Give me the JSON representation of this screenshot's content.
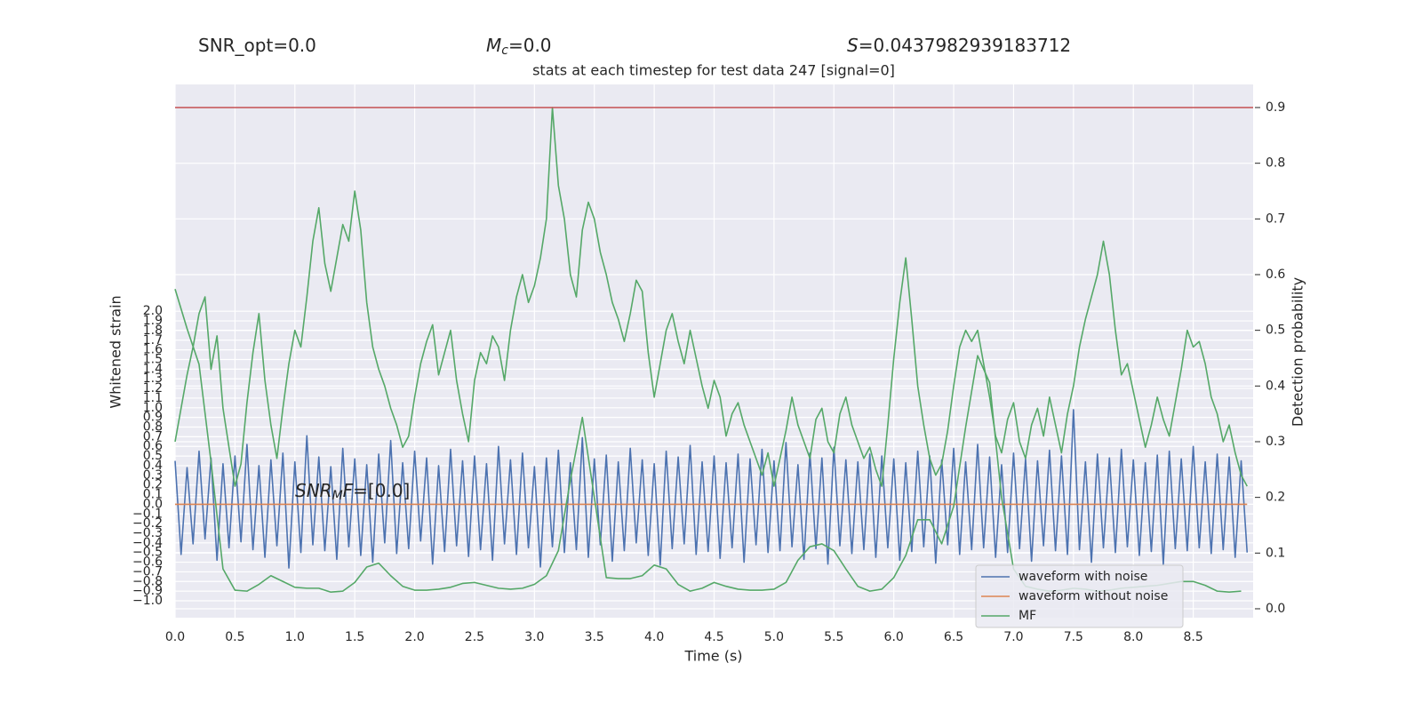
{
  "chart_data": {
    "type": "line",
    "title": "stats at each timestep for test data 247 [signal=0]",
    "xlabel": "Time (s)",
    "ylabel": "Whitened strain",
    "y2label": "Detection probability",
    "annotations": [
      {
        "parts": [
          {
            "text": "SNR_opt=0.0"
          }
        ]
      },
      {
        "parts": [
          {
            "text": "M",
            "style": "italic"
          },
          {
            "text": "c",
            "style": "italic-sub"
          },
          {
            "text": "=0.0"
          }
        ]
      },
      {
        "parts": [
          {
            "text": "S",
            "style": "italic"
          },
          {
            "text": "=0.0437982939183712"
          }
        ]
      },
      {
        "parts": [
          {
            "text": "SNR",
            "style": "italic"
          },
          {
            "text": "M",
            "style": "italic-sub"
          },
          {
            "text": "F",
            "style": "italic"
          },
          {
            "text": "=[0.0]"
          }
        ]
      }
    ],
    "grid": true,
    "legend": "lower right",
    "xlim": [
      0,
      9
    ],
    "ylim": [
      -1.175,
      4.35
    ],
    "y2lim": [
      -0.016,
      0.9415
    ],
    "xticks": [
      {
        "value": 0,
        "label": "0.0"
      },
      0.5,
      {
        "value": 1,
        "label": "1.0"
      },
      1.5,
      {
        "value": 2,
        "label": "2.0"
      },
      2.5,
      {
        "value": 3,
        "label": "3.0"
      },
      3.5,
      {
        "value": 4,
        "label": "4.0"
      },
      4.5,
      {
        "value": 5,
        "label": "5.0"
      },
      5.5,
      {
        "value": 6,
        "label": "6.0"
      },
      6.5,
      {
        "value": 7,
        "label": "7.0"
      },
      7.5,
      {
        "value": 8,
        "label": "8.0"
      },
      8.5
    ],
    "yticks": [
      {
        "value": -1,
        "label": "−1.0"
      },
      {
        "value": -0.9,
        "label": "−0.9"
      },
      {
        "value": -0.8,
        "label": "−0.8"
      },
      {
        "value": -0.7,
        "label": "−0.7"
      },
      {
        "value": -0.6,
        "label": "−0.6"
      },
      {
        "value": -0.5,
        "label": "−0.5"
      },
      {
        "value": -0.4,
        "label": "−0.4"
      },
      {
        "value": -0.3,
        "label": "−0.3"
      },
      {
        "value": -0.2,
        "label": "−0.2"
      },
      {
        "value": -0.1,
        "label": "−0.1"
      },
      {
        "value": 0,
        "label": "0.0"
      },
      0.1,
      0.2,
      0.3,
      0.4,
      0.5,
      0.6,
      0.7,
      0.8,
      0.9,
      {
        "value": 1,
        "label": "1.0"
      },
      1.1,
      1.2,
      1.3,
      1.4,
      1.5,
      1.6,
      1.7,
      1.8,
      1.9,
      {
        "value": 2,
        "label": "2.0"
      }
    ],
    "y2ticks": [
      {
        "value": 0,
        "label": "0.0"
      },
      0.1,
      0.2,
      0.3,
      0.4,
      0.5,
      0.6,
      0.7,
      0.8,
      0.9
    ],
    "x": [
      0,
      0.05,
      0.1,
      0.15,
      0.2,
      0.25,
      0.3,
      0.35,
      0.4,
      0.45,
      0.5,
      0.55,
      0.6,
      0.65,
      0.7,
      0.75,
      0.8,
      0.85,
      0.9,
      0.95,
      1,
      1.05,
      1.1,
      1.15,
      1.2,
      1.25,
      1.3,
      1.35,
      1.4,
      1.45,
      1.5,
      1.55,
      1.6,
      1.65,
      1.7,
      1.75,
      1.8,
      1.85,
      1.9,
      1.95,
      2,
      2.05,
      2.1,
      2.15,
      2.2,
      2.25,
      2.3,
      2.35,
      2.4,
      2.45,
      2.5,
      2.55,
      2.6,
      2.65,
      2.7,
      2.75,
      2.8,
      2.85,
      2.9,
      2.95,
      3,
      3.05,
      3.1,
      3.15,
      3.2,
      3.25,
      3.3,
      3.35,
      3.4,
      3.45,
      3.5,
      3.55,
      3.6,
      3.65,
      3.7,
      3.75,
      3.8,
      3.85,
      3.9,
      3.95,
      4,
      4.05,
      4.1,
      4.15,
      4.2,
      4.25,
      4.3,
      4.35,
      4.4,
      4.45,
      4.5,
      4.55,
      4.6,
      4.65,
      4.7,
      4.75,
      4.8,
      4.85,
      4.9,
      4.95,
      5,
      5.05,
      5.1,
      5.15,
      5.2,
      5.25,
      5.3,
      5.35,
      5.4,
      5.45,
      5.5,
      5.55,
      5.6,
      5.65,
      5.7,
      5.75,
      5.8,
      5.85,
      5.9,
      5.95,
      6,
      6.05,
      6.1,
      6.15,
      6.2,
      6.25,
      6.3,
      6.35,
      6.4,
      6.45,
      6.5,
      6.55,
      6.6,
      6.65,
      6.7,
      6.75,
      6.8,
      6.85,
      6.9,
      6.95,
      7,
      7.05,
      7.1,
      7.15,
      7.2,
      7.25,
      7.3,
      7.35,
      7.4,
      7.45,
      7.5,
      7.55,
      7.6,
      7.65,
      7.7,
      7.75,
      7.8,
      7.85,
      7.9,
      7.95,
      8,
      8.05,
      8.1,
      8.15,
      8.2,
      8.25,
      8.3,
      8.35,
      8.4,
      8.45,
      8.5,
      8.55,
      8.6,
      8.65,
      8.7,
      8.75,
      8.8,
      8.85,
      8.9,
      8.95
    ],
    "series": [
      {
        "name": "waveform with noise",
        "color": "#4c72b0",
        "values": [
          0.45,
          -0.52,
          0.38,
          -0.41,
          0.55,
          -0.36,
          0.48,
          -0.58,
          0.42,
          -0.45,
          0.5,
          -0.39,
          0.62,
          -0.47,
          0.4,
          -0.55,
          0.46,
          -0.43,
          0.53,
          -0.66,
          0.44,
          -0.5,
          0.71,
          -0.42,
          0.49,
          -0.48,
          0.39,
          -0.57,
          0.58,
          -0.44,
          0.47,
          -0.53,
          0.41,
          -0.6,
          0.52,
          -0.4,
          0.66,
          -0.51,
          0.43,
          -0.46,
          0.55,
          -0.38,
          0.48,
          -0.62,
          0.4,
          -0.49,
          0.57,
          -0.43,
          0.45,
          -0.54,
          0.5,
          -0.47,
          0.42,
          -0.58,
          0.6,
          -0.41,
          0.46,
          -0.52,
          0.53,
          -0.45,
          0.39,
          -0.65,
          0.48,
          -0.44,
          0.56,
          -0.5,
          0.43,
          -0.47,
          0.69,
          -0.55,
          0.47,
          -0.42,
          0.51,
          -0.59,
          0.44,
          -0.48,
          0.58,
          -0.4,
          0.46,
          -0.53,
          0.42,
          -0.63,
          0.55,
          -0.46,
          0.49,
          -0.41,
          0.61,
          -0.52,
          0.44,
          -0.49,
          0.5,
          -0.56,
          0.43,
          -0.45,
          0.52,
          -0.6,
          0.47,
          -0.42,
          0.57,
          -0.5,
          0.45,
          -0.48,
          0.64,
          -0.44,
          0.41,
          -0.57,
          0.53,
          -0.46,
          0.48,
          -0.62,
          0.59,
          -0.43,
          0.46,
          -0.51,
          0.44,
          -0.47,
          0.52,
          -0.55,
          0.5,
          -0.45,
          0.47,
          -0.58,
          0.43,
          -0.49,
          0.55,
          -0.44,
          0.5,
          -0.61,
          0.46,
          -0.42,
          0.58,
          -0.52,
          0.44,
          -0.47,
          0.62,
          -0.45,
          0.49,
          -0.55,
          0.41,
          -0.5,
          0.53,
          -0.46,
          0.47,
          -0.59,
          0.45,
          -0.43,
          0.56,
          -0.48,
          0.5,
          -0.52,
          0.98,
          -0.47,
          0.44,
          -0.6,
          0.52,
          -0.45,
          0.48,
          -0.5,
          0.57,
          -0.44,
          0.46,
          -0.53,
          0.43,
          -0.49,
          0.51,
          -0.62,
          0.55,
          -0.46,
          0.47,
          -0.48,
          0.6,
          -0.45,
          0.44,
          -0.51,
          0.52,
          -0.47,
          0.49,
          -0.55,
          0.45,
          -0.5
        ]
      },
      {
        "name": "waveform without noise",
        "color": "#dd8452",
        "x": [
          0,
          8.95
        ],
        "values": [
          0,
          0
        ]
      },
      {
        "name": "MF",
        "color": "#55a868",
        "x": [
          0,
          0.1,
          0.2,
          0.3,
          0.4,
          0.5,
          0.6,
          0.7,
          0.8,
          0.9,
          1,
          1.1,
          1.2,
          1.3,
          1.4,
          1.5,
          1.6,
          1.7,
          1.8,
          1.9,
          2,
          2.1,
          2.2,
          2.3,
          2.4,
          2.5,
          2.6,
          2.7,
          2.8,
          2.9,
          3,
          3.1,
          3.2,
          3.3,
          3.4,
          3.5,
          3.6,
          3.7,
          3.8,
          3.9,
          4,
          4.1,
          4.2,
          4.3,
          4.4,
          4.5,
          4.6,
          4.7,
          4.8,
          4.9,
          5,
          5.1,
          5.2,
          5.3,
          5.4,
          5.5,
          5.6,
          5.7,
          5.8,
          5.9,
          6,
          6.1,
          6.2,
          6.3,
          6.4,
          6.5,
          6.6,
          6.7,
          6.8,
          6.9,
          7,
          7.1,
          7.2,
          7.3,
          7.4,
          7.5,
          7.6,
          7.7,
          7.8,
          7.9,
          8,
          8.1,
          8.2,
          8.3,
          8.4,
          8.5,
          8.6,
          8.7,
          8.8,
          8.9
        ],
        "values": [
          2.23,
          1.82,
          1.45,
          0.44,
          -0.67,
          -0.89,
          -0.9,
          -0.83,
          -0.74,
          -0.8,
          -0.86,
          -0.87,
          -0.87,
          -0.91,
          -0.9,
          -0.81,
          -0.65,
          -0.61,
          -0.74,
          -0.85,
          -0.89,
          -0.89,
          -0.88,
          -0.86,
          -0.82,
          -0.81,
          -0.84,
          -0.87,
          -0.88,
          -0.87,
          -0.83,
          -0.74,
          -0.48,
          0.25,
          0.9,
          0.07,
          -0.76,
          -0.77,
          -0.77,
          -0.74,
          -0.63,
          -0.67,
          -0.83,
          -0.9,
          -0.87,
          -0.81,
          -0.85,
          -0.88,
          -0.89,
          -0.89,
          -0.88,
          -0.81,
          -0.58,
          -0.44,
          -0.41,
          -0.48,
          -0.67,
          -0.85,
          -0.9,
          -0.88,
          -0.76,
          -0.53,
          -0.16,
          -0.16,
          -0.41,
          -0.02,
          0.8,
          1.54,
          1.26,
          0.07,
          -0.67,
          -0.85,
          -0.88,
          -0.9,
          -0.89,
          -0.87,
          -0.88,
          -0.9,
          -0.89,
          -0.87,
          -0.86,
          -0.85,
          -0.84,
          -0.82,
          -0.8,
          -0.8,
          -0.84,
          -0.9,
          -0.91,
          -0.9
        ]
      },
      {
        "color": "#55a868",
        "axis": "y2",
        "values": [
          0.3,
          0.36,
          0.42,
          0.47,
          0.53,
          0.56,
          0.43,
          0.49,
          0.36,
          0.29,
          0.22,
          0.26,
          0.37,
          0.46,
          0.53,
          0.41,
          0.33,
          0.27,
          0.36,
          0.44,
          0.5,
          0.47,
          0.56,
          0.66,
          0.72,
          0.62,
          0.57,
          0.63,
          0.69,
          0.66,
          0.75,
          0.68,
          0.55,
          0.47,
          0.43,
          0.4,
          0.36,
          0.33,
          0.29,
          0.31,
          0.38,
          0.44,
          0.48,
          0.51,
          0.42,
          0.46,
          0.5,
          0.41,
          0.35,
          0.3,
          0.41,
          0.46,
          0.44,
          0.49,
          0.47,
          0.41,
          0.5,
          0.56,
          0.6,
          0.55,
          0.58,
          0.63,
          0.7,
          0.9,
          0.76,
          0.7,
          0.6,
          0.56,
          0.68,
          0.73,
          0.7,
          0.64,
          0.6,
          0.55,
          0.52,
          0.48,
          0.53,
          0.59,
          0.57,
          0.46,
          0.38,
          0.44,
          0.5,
          0.53,
          0.48,
          0.44,
          0.5,
          0.45,
          0.4,
          0.36,
          0.41,
          0.38,
          0.31,
          0.35,
          0.37,
          0.33,
          0.3,
          0.27,
          0.24,
          0.28,
          0.22,
          0.27,
          0.32,
          0.38,
          0.33,
          0.3,
          0.27,
          0.34,
          0.36,
          0.3,
          0.28,
          0.35,
          0.38,
          0.33,
          0.3,
          0.27,
          0.29,
          0.25,
          0.22,
          0.33,
          0.45,
          0.55,
          0.63,
          0.52,
          0.4,
          0.33,
          0.27,
          0.24,
          0.26,
          0.32,
          0.4,
          0.47,
          0.5,
          0.48,
          0.5,
          0.44,
          0.38,
          0.31,
          0.28,
          0.34,
          0.37,
          0.3,
          0.27,
          0.33,
          0.36,
          0.31,
          0.38,
          0.33,
          0.28,
          0.35,
          0.4,
          0.47,
          0.52,
          0.56,
          0.6,
          0.66,
          0.6,
          0.5,
          0.42,
          0.44,
          0.39,
          0.34,
          0.29,
          0.33,
          0.38,
          0.34,
          0.31,
          0.37,
          0.43,
          0.5,
          0.47,
          0.48,
          0.44,
          0.38,
          0.35,
          0.3,
          0.33,
          0.28,
          0.24,
          0.22
        ]
      }
    ],
    "hlines": [
      {
        "value": 0.9,
        "axis": "y2",
        "color": "#c44e52"
      }
    ]
  }
}
